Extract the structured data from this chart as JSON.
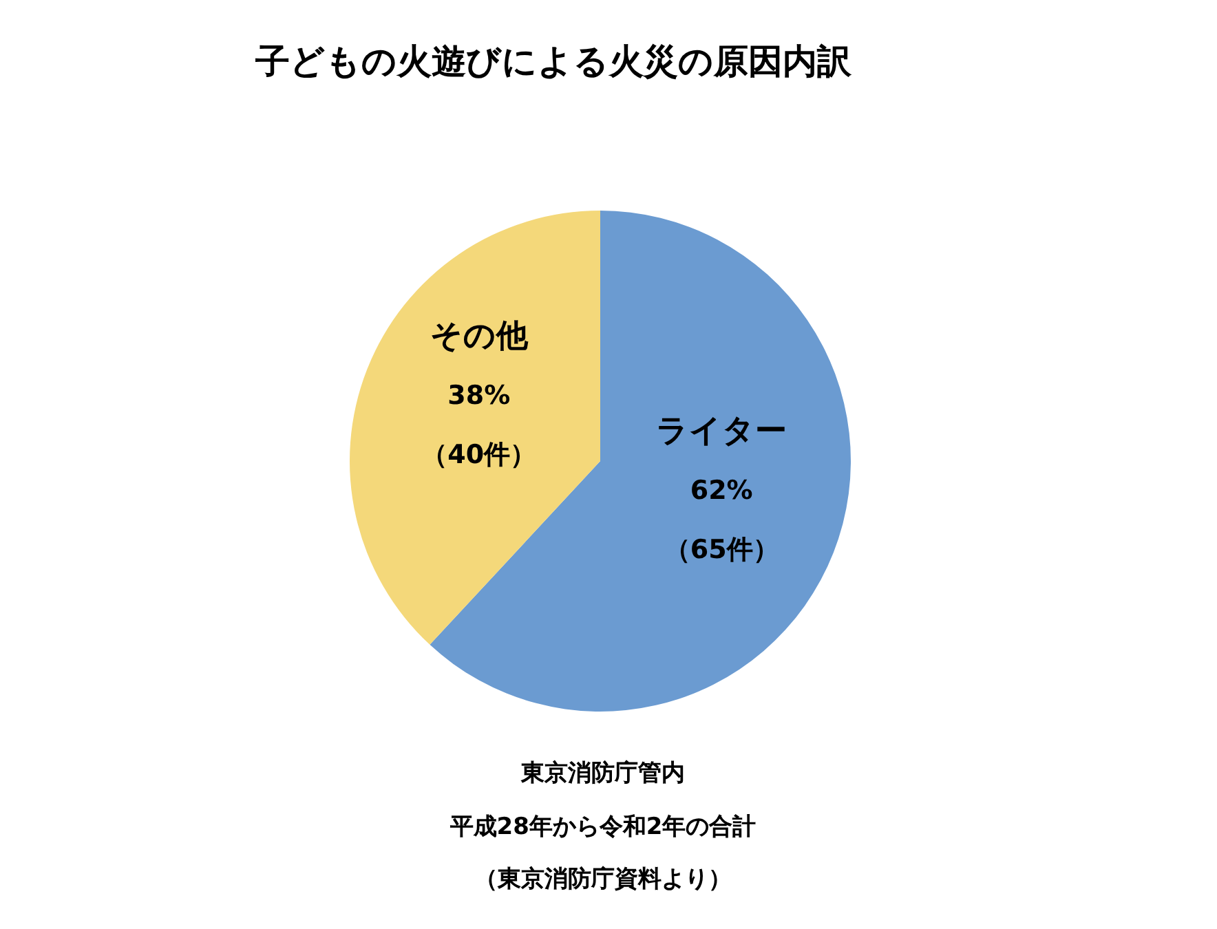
{
  "chart_data": {
    "type": "pie",
    "title": "子どもの火遊びによる火災の原因内訳",
    "categories": [
      "ライター",
      "その他"
    ],
    "values": [
      65,
      40
    ],
    "value_labels": [
      "62%\n（65件）",
      "38%\n（40件）"
    ],
    "colors": [
      "#6b9bd1",
      "#f4d87a"
    ],
    "annotations": [
      "東京消防庁管内",
      "平成28年から令和2年の合計",
      "（東京消防庁資料より）"
    ]
  }
}
